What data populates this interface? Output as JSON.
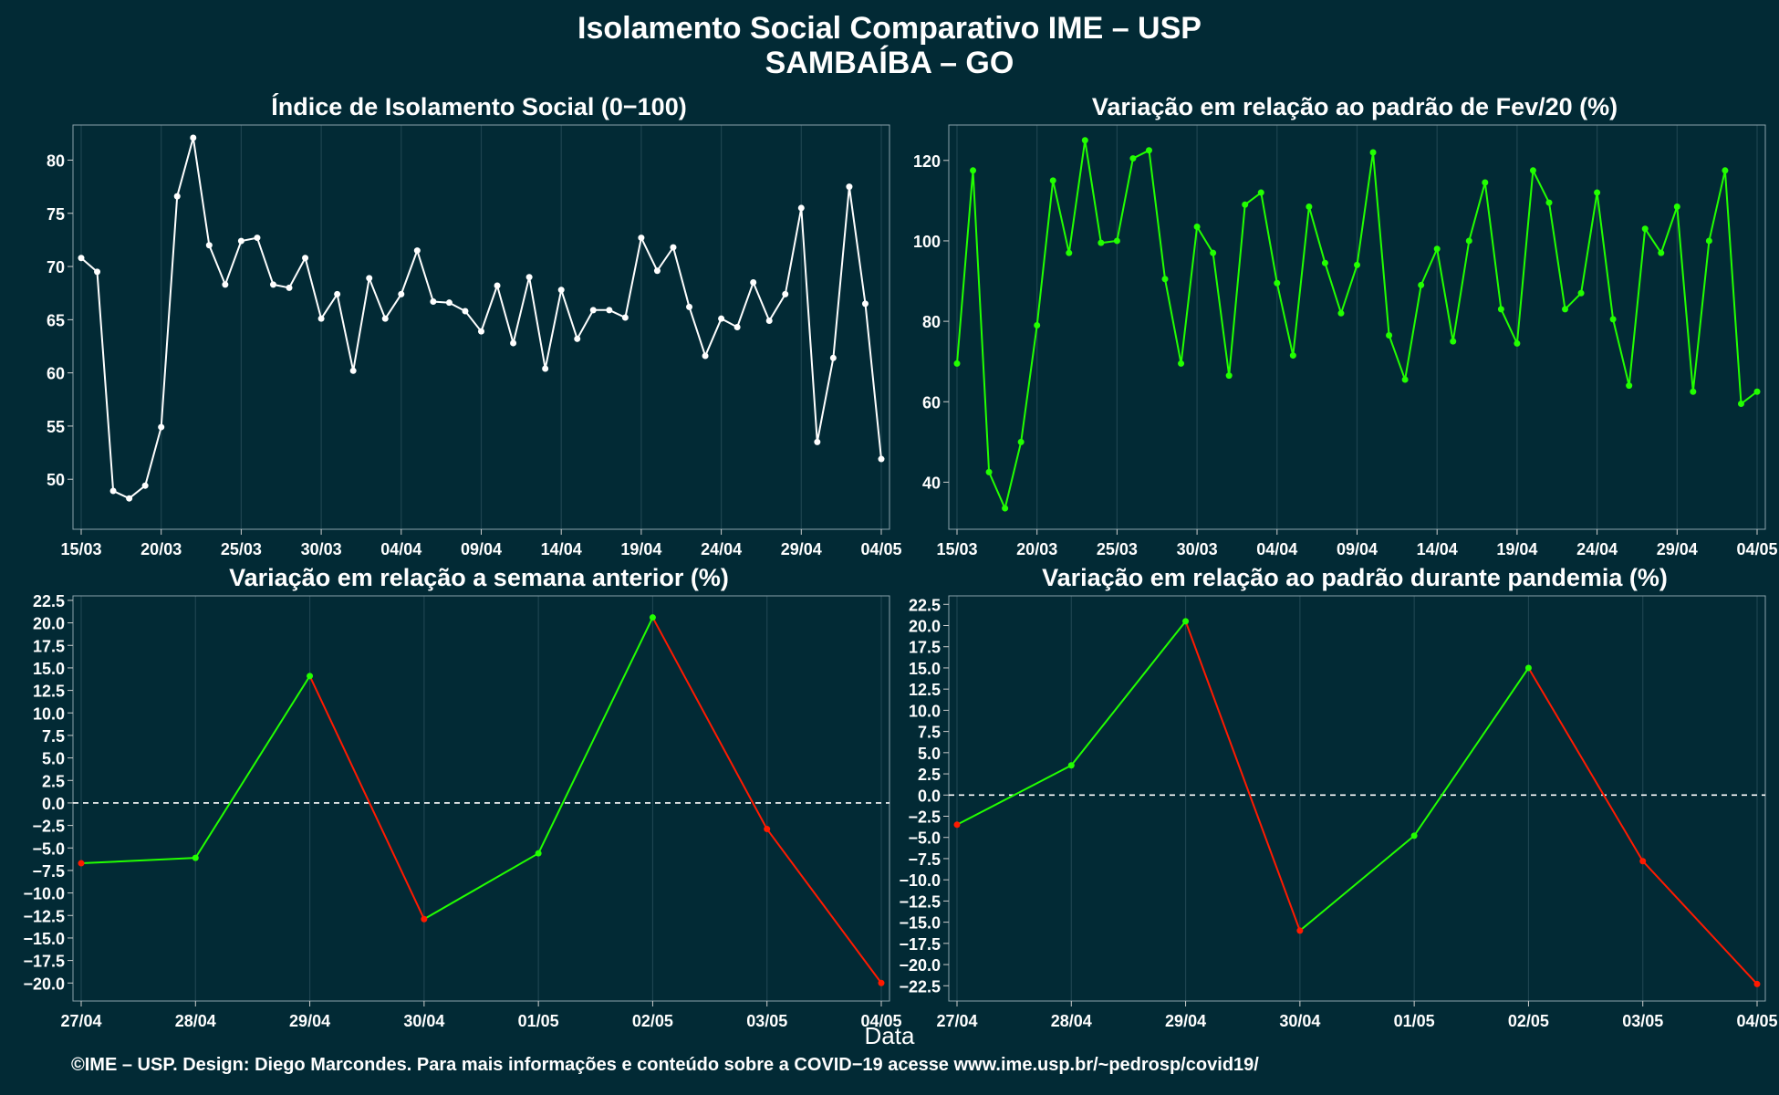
{
  "header": {
    "title_line1": "Isolamento Social Comparativo IME – USP",
    "title_line2": "SAMBAÍBA – GO"
  },
  "xlabel": "Data",
  "caption": "©IME – USP. Design: Diego Marcondes. Para mais informações e conteúdo sobre a COVID−19 acesse www.ime.usp.br/~pedrosp/covid19/",
  "colors": {
    "background": "#022a35",
    "white": "#ffffff",
    "green": "#22ff00",
    "red": "#ff1a00",
    "grid": "#1e4450"
  },
  "chart_data": [
    {
      "type": "line",
      "title": "Índice de Isolamento Social (0−100)",
      "xlabel": "",
      "ylabel": "",
      "x_start": "15/03",
      "x_end": "04/05",
      "x_ticks": [
        "15/03",
        "20/03",
        "25/03",
        "30/03",
        "04/04",
        "09/04",
        "14/04",
        "19/04",
        "24/04",
        "29/04",
        "04/05"
      ],
      "y_ticks": [
        50,
        55,
        60,
        65,
        70,
        75,
        80
      ],
      "ylim": [
        45.3,
        83.3
      ],
      "color": "#ffffff",
      "values": [
        70.8,
        69.5,
        48.9,
        48.2,
        49.4,
        54.9,
        76.6,
        82.1,
        72.0,
        68.3,
        72.4,
        72.7,
        68.3,
        68.0,
        70.8,
        65.1,
        67.4,
        60.2,
        68.9,
        65.1,
        67.4,
        71.5,
        66.7,
        66.6,
        65.8,
        63.9,
        68.2,
        62.8,
        69.0,
        60.4,
        67.8,
        63.2,
        65.9,
        65.9,
        65.2,
        72.7,
        69.6,
        71.8,
        66.2,
        61.6,
        65.1,
        64.3,
        68.5,
        64.9,
        67.4,
        75.5,
        53.5,
        61.4,
        77.5,
        66.5,
        51.9
      ]
    },
    {
      "type": "line",
      "title": "Variação em relação ao padrão de Fev/20 (%)",
      "xlabel": "",
      "ylabel": "",
      "x_start": "15/03",
      "x_end": "04/05",
      "x_ticks": [
        "15/03",
        "20/03",
        "25/03",
        "30/03",
        "04/04",
        "09/04",
        "14/04",
        "19/04",
        "24/04",
        "29/04",
        "04/05"
      ],
      "y_ticks": [
        40,
        60,
        80,
        100,
        120
      ],
      "ylim": [
        28.3,
        128.8
      ],
      "color": "#22ff00",
      "values": [
        69.5,
        117.5,
        42.5,
        33.5,
        50.0,
        79.0,
        115.0,
        97.0,
        125.0,
        99.5,
        100.0,
        120.5,
        122.5,
        90.5,
        69.5,
        103.5,
        97.0,
        66.5,
        109.0,
        112.0,
        89.5,
        71.5,
        108.5,
        94.5,
        82.0,
        94.0,
        122.0,
        76.5,
        65.5,
        89.0,
        98.0,
        75.0,
        100.0,
        114.5,
        83.0,
        74.5,
        117.5,
        109.5,
        83.0,
        87.0,
        112.0,
        80.5,
        64.0,
        103.0,
        97.0,
        108.5,
        62.5,
        100.0,
        117.5,
        59.5,
        62.5
      ]
    },
    {
      "type": "line",
      "title": "Variação em relação a semana anterior (%)",
      "xlabel": "",
      "ylabel": "",
      "categories": [
        "27/04",
        "28/04",
        "29/04",
        "30/04",
        "01/05",
        "02/05",
        "03/05",
        "04/05"
      ],
      "values": [
        -6.7,
        -6.1,
        14.1,
        -12.9,
        -5.6,
        20.6,
        -2.9,
        -20.0
      ],
      "y_ticks": [
        -20,
        -17.5,
        -15,
        -12.5,
        -10,
        -7.5,
        -5,
        -2.5,
        0,
        2.5,
        5,
        7.5,
        10,
        12.5,
        15,
        17.5,
        20,
        22.5
      ],
      "y_tick_labels": [
        "−20.0",
        "−17.5",
        "−15.0",
        "−12.5",
        "−10.0",
        "−7.5",
        "−5.0",
        "−2.5",
        "0.0",
        "2.5",
        "5.0",
        "7.5",
        "10.0",
        "12.5",
        "15.0",
        "17.5",
        "20.0",
        "22.5"
      ],
      "ylim": [
        -22.0,
        23.0
      ],
      "zero_line": "dashed",
      "up_color": "#22ff00",
      "down_color": "#ff1a00"
    },
    {
      "type": "line",
      "title": "Variação em relação ao padrão durante pandemia (%)",
      "xlabel": "",
      "ylabel": "",
      "categories": [
        "27/04",
        "28/04",
        "29/04",
        "30/04",
        "01/05",
        "02/05",
        "03/05",
        "04/05"
      ],
      "values": [
        -3.5,
        3.5,
        20.5,
        -16.0,
        -4.8,
        15.0,
        -7.8,
        -22.3
      ],
      "y_ticks": [
        -22.5,
        -20,
        -17.5,
        -15,
        -12.5,
        -10,
        -7.5,
        -5,
        -2.5,
        0,
        2.5,
        5,
        7.5,
        10,
        12.5,
        15,
        17.5,
        20,
        22.5
      ],
      "y_tick_labels": [
        "−22.5",
        "−20.0",
        "−17.5",
        "−15.0",
        "−12.5",
        "−10.0",
        "−7.5",
        "−5.0",
        "−2.5",
        "0.0",
        "2.5",
        "5.0",
        "7.5",
        "10.0",
        "12.5",
        "15.0",
        "17.5",
        "20.0",
        "22.5"
      ],
      "ylim": [
        -24.3,
        23.5
      ],
      "zero_line": "dashed",
      "up_color": "#22ff00",
      "down_color": "#ff1a00"
    }
  ]
}
